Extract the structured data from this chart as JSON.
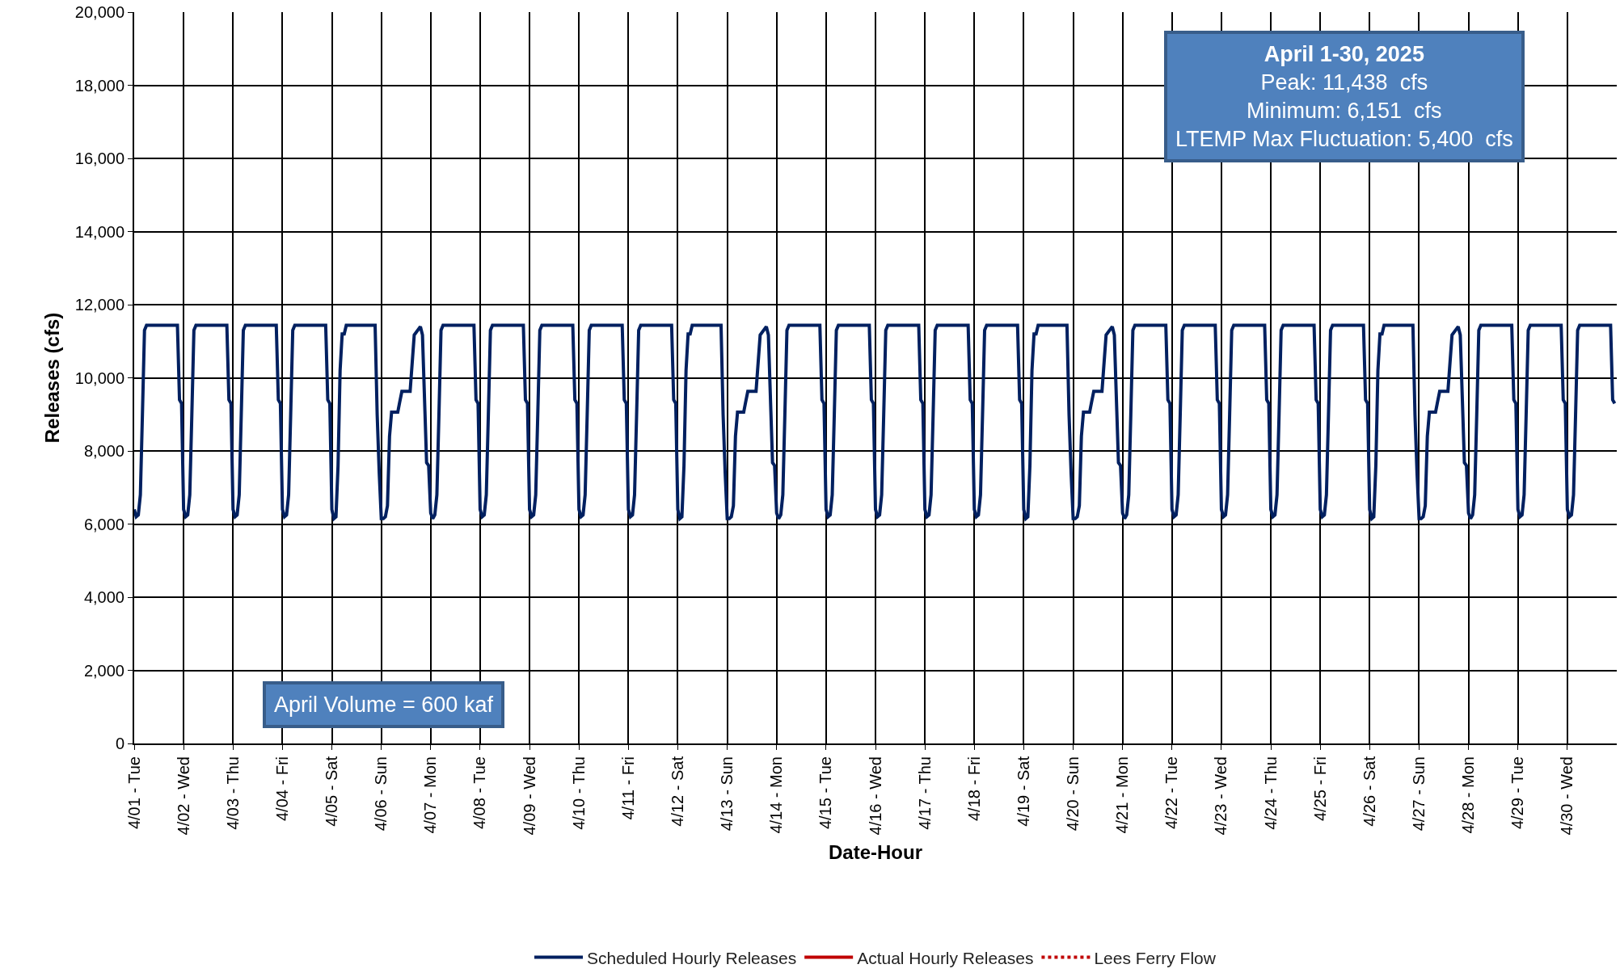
{
  "chart_data": {
    "type": "line",
    "xlabel": "Date-Hour",
    "ylabel": "Releases (cfs)",
    "xlim": [
      "2025-04-01T00:00",
      "2025-05-01T00:00"
    ],
    "xticks": [
      {
        "value": "2025-04-01",
        "label": "4/01 - Tue"
      },
      {
        "value": "2025-04-02",
        "label": "4/02 - Wed"
      },
      {
        "value": "2025-04-03",
        "label": "4/03 - Thu"
      },
      {
        "value": "2025-04-04",
        "label": "4/04 - Fri"
      },
      {
        "value": "2025-04-05",
        "label": "4/05 - Sat"
      },
      {
        "value": "2025-04-06",
        "label": "4/06 - Sun"
      },
      {
        "value": "2025-04-07",
        "label": "4/07 - Mon"
      },
      {
        "value": "2025-04-08",
        "label": "4/08 - Tue"
      },
      {
        "value": "2025-04-09",
        "label": "4/09 - Wed"
      },
      {
        "value": "2025-04-10",
        "label": "4/10 - Thu"
      },
      {
        "value": "2025-04-11",
        "label": "4/11 - Fri"
      },
      {
        "value": "2025-04-12",
        "label": "4/12 - Sat"
      },
      {
        "value": "2025-04-13",
        "label": "4/13 - Sun"
      },
      {
        "value": "2025-04-14",
        "label": "4/14 - Mon"
      },
      {
        "value": "2025-04-15",
        "label": "4/15 - Tue"
      },
      {
        "value": "2025-04-16",
        "label": "4/16 - Wed"
      },
      {
        "value": "2025-04-17",
        "label": "4/17 - Thu"
      },
      {
        "value": "2025-04-18",
        "label": "4/18 - Fri"
      },
      {
        "value": "2025-04-19",
        "label": "4/19 - Sat"
      },
      {
        "value": "2025-04-20",
        "label": "4/20 - Sun"
      },
      {
        "value": "2025-04-21",
        "label": "4/21 - Mon"
      },
      {
        "value": "2025-04-22",
        "label": "4/22 - Tue"
      },
      {
        "value": "2025-04-23",
        "label": "4/23 - Wed"
      },
      {
        "value": "2025-04-24",
        "label": "4/24 - Thu"
      },
      {
        "value": "2025-04-25",
        "label": "4/25 - Fri"
      },
      {
        "value": "2025-04-26",
        "label": "4/26 - Sat"
      },
      {
        "value": "2025-04-27",
        "label": "4/27 - Sun"
      },
      {
        "value": "2025-04-28",
        "label": "4/28 - Mon"
      },
      {
        "value": "2025-04-29",
        "label": "4/29 - Tue"
      },
      {
        "value": "2025-04-30",
        "label": "4/30 - Wed"
      }
    ],
    "ylim": [
      0,
      20000
    ],
    "yticks": [
      {
        "value": 0,
        "label": "0"
      },
      {
        "value": 2000,
        "label": "2,000"
      },
      {
        "value": 4000,
        "label": "4,000"
      },
      {
        "value": 6000,
        "label": "6,000"
      },
      {
        "value": 8000,
        "label": "8,000"
      },
      {
        "value": 10000,
        "label": "10,000"
      },
      {
        "value": 12000,
        "label": "12,000"
      },
      {
        "value": 14000,
        "label": "14,000"
      },
      {
        "value": 16000,
        "label": "16,000"
      },
      {
        "value": 18000,
        "label": "18,000"
      },
      {
        "value": 20000,
        "label": "20,000"
      }
    ],
    "grid": true,
    "legend": "bottom",
    "series": [
      {
        "name": "Scheduled Hourly Releases",
        "color": "#002060",
        "line_style": "solid",
        "x": [
          "2025-04-01T00:00",
          "2025-04-01T01:00",
          "2025-04-01T02:00",
          "2025-04-01T03:00",
          "2025-04-01T04:00",
          "2025-04-01T05:00",
          "2025-04-01T06:00",
          "2025-04-01T21:00",
          "2025-04-01T22:00",
          "2025-04-01T23:00",
          "2025-04-02T00:00",
          "2025-04-02T01:00",
          "2025-04-02T02:00",
          "2025-04-02T03:00",
          "2025-04-02T04:00",
          "2025-04-02T05:00",
          "2025-04-02T06:00",
          "2025-04-02T21:00",
          "2025-04-02T22:00",
          "2025-04-02T23:00",
          "2025-04-03T00:00",
          "2025-04-03T01:00",
          "2025-04-03T02:00",
          "2025-04-03T03:00",
          "2025-04-03T04:00",
          "2025-04-03T05:00",
          "2025-04-03T06:00",
          "2025-04-03T21:00",
          "2025-04-03T22:00",
          "2025-04-03T23:00",
          "2025-04-04T00:00",
          "2025-04-04T01:00",
          "2025-04-04T02:00",
          "2025-04-04T03:00",
          "2025-04-04T04:00",
          "2025-04-04T05:00",
          "2025-04-04T06:00",
          "2025-04-04T21:00",
          "2025-04-04T22:00",
          "2025-04-04T23:00",
          "2025-04-05T00:00",
          "2025-04-05T01:00",
          "2025-04-05T02:00",
          "2025-04-05T03:00",
          "2025-04-05T04:00",
          "2025-04-05T05:00",
          "2025-04-05T06:00",
          "2025-04-05T07:00",
          "2025-04-05T21:00",
          "2025-04-05T22:00",
          "2025-04-05T23:00",
          "2025-04-06T00:00",
          "2025-04-06T01:00",
          "2025-04-06T02:00",
          "2025-04-06T03:00",
          "2025-04-06T04:00",
          "2025-04-06T05:00",
          "2025-04-06T08:00",
          "2025-04-06T09:00",
          "2025-04-06T10:00",
          "2025-04-06T14:00",
          "2025-04-06T16:00",
          "2025-04-06T19:00",
          "2025-04-06T20:00",
          "2025-04-06T22:00",
          "2025-04-06T23:00",
          "2025-04-07T00:00",
          "2025-04-07T01:00",
          "2025-04-07T02:00",
          "2025-04-07T03:00",
          "2025-04-07T04:00",
          "2025-04-07T05:00",
          "2025-04-07T06:00",
          "2025-04-07T21:00",
          "2025-04-07T22:00",
          "2025-04-07T23:00",
          "2025-04-08T00:00",
          "2025-04-08T01:00",
          "2025-04-08T02:00",
          "2025-04-08T03:00",
          "2025-04-08T04:00",
          "2025-04-08T05:00",
          "2025-04-08T06:00",
          "2025-04-08T21:00",
          "2025-04-08T22:00",
          "2025-04-08T23:00",
          "2025-04-09T00:00",
          "2025-04-09T01:00",
          "2025-04-09T02:00",
          "2025-04-09T03:00",
          "2025-04-09T04:00",
          "2025-04-09T05:00",
          "2025-04-09T06:00",
          "2025-04-09T21:00",
          "2025-04-09T22:00",
          "2025-04-09T23:00",
          "2025-04-10T00:00",
          "2025-04-10T01:00",
          "2025-04-10T02:00",
          "2025-04-10T03:00",
          "2025-04-10T04:00",
          "2025-04-10T05:00",
          "2025-04-10T06:00",
          "2025-04-10T21:00",
          "2025-04-10T22:00",
          "2025-04-10T23:00",
          "2025-04-11T00:00",
          "2025-04-11T01:00",
          "2025-04-11T02:00",
          "2025-04-11T03:00",
          "2025-04-11T04:00",
          "2025-04-11T05:00",
          "2025-04-11T06:00",
          "2025-04-11T21:00",
          "2025-04-11T22:00",
          "2025-04-11T23:00",
          "2025-04-12T00:00",
          "2025-04-12T01:00",
          "2025-04-12T02:00",
          "2025-04-12T03:00",
          "2025-04-12T04:00",
          "2025-04-12T05:00",
          "2025-04-12T06:00",
          "2025-04-12T07:00",
          "2025-04-12T21:00",
          "2025-04-12T22:00",
          "2025-04-12T23:00",
          "2025-04-13T00:00",
          "2025-04-13T01:00",
          "2025-04-13T02:00",
          "2025-04-13T03:00",
          "2025-04-13T04:00",
          "2025-04-13T05:00",
          "2025-04-13T08:00",
          "2025-04-13T09:00",
          "2025-04-13T10:00",
          "2025-04-13T14:00",
          "2025-04-13T16:00",
          "2025-04-13T19:00",
          "2025-04-13T20:00",
          "2025-04-13T22:00",
          "2025-04-13T23:00",
          "2025-04-14T00:00",
          "2025-04-14T01:00",
          "2025-04-14T02:00",
          "2025-04-14T03:00",
          "2025-04-14T04:00",
          "2025-04-14T05:00",
          "2025-04-14T06:00",
          "2025-04-14T21:00",
          "2025-04-14T22:00",
          "2025-04-14T23:00",
          "2025-04-15T00:00",
          "2025-04-15T01:00",
          "2025-04-15T02:00",
          "2025-04-15T03:00",
          "2025-04-15T04:00",
          "2025-04-15T05:00",
          "2025-04-15T06:00",
          "2025-04-15T21:00",
          "2025-04-15T22:00",
          "2025-04-15T23:00",
          "2025-04-16T00:00",
          "2025-04-16T01:00",
          "2025-04-16T02:00",
          "2025-04-16T03:00",
          "2025-04-16T04:00",
          "2025-04-16T05:00",
          "2025-04-16T06:00",
          "2025-04-16T21:00",
          "2025-04-16T22:00",
          "2025-04-16T23:00",
          "2025-04-17T00:00",
          "2025-04-17T01:00",
          "2025-04-17T02:00",
          "2025-04-17T03:00",
          "2025-04-17T04:00",
          "2025-04-17T05:00",
          "2025-04-17T06:00",
          "2025-04-17T21:00",
          "2025-04-17T22:00",
          "2025-04-17T23:00",
          "2025-04-18T00:00",
          "2025-04-18T01:00",
          "2025-04-18T02:00",
          "2025-04-18T03:00",
          "2025-04-18T04:00",
          "2025-04-18T05:00",
          "2025-04-18T06:00",
          "2025-04-18T21:00",
          "2025-04-18T22:00",
          "2025-04-18T23:00",
          "2025-04-19T00:00",
          "2025-04-19T01:00",
          "2025-04-19T02:00",
          "2025-04-19T03:00",
          "2025-04-19T04:00",
          "2025-04-19T05:00",
          "2025-04-19T06:00",
          "2025-04-19T07:00",
          "2025-04-19T21:00",
          "2025-04-19T22:00",
          "2025-04-19T23:00",
          "2025-04-20T00:00",
          "2025-04-20T01:00",
          "2025-04-20T02:00",
          "2025-04-20T03:00",
          "2025-04-20T04:00",
          "2025-04-20T05:00",
          "2025-04-20T08:00",
          "2025-04-20T09:00",
          "2025-04-20T10:00",
          "2025-04-20T14:00",
          "2025-04-20T16:00",
          "2025-04-20T19:00",
          "2025-04-20T20:00",
          "2025-04-20T22:00",
          "2025-04-20T23:00",
          "2025-04-21T00:00",
          "2025-04-21T01:00",
          "2025-04-21T02:00",
          "2025-04-21T03:00",
          "2025-04-21T04:00",
          "2025-04-21T05:00",
          "2025-04-21T06:00",
          "2025-04-21T21:00",
          "2025-04-21T22:00",
          "2025-04-21T23:00",
          "2025-04-22T00:00",
          "2025-04-22T01:00",
          "2025-04-22T02:00",
          "2025-04-22T03:00",
          "2025-04-22T04:00",
          "2025-04-22T05:00",
          "2025-04-22T06:00",
          "2025-04-22T21:00",
          "2025-04-22T22:00",
          "2025-04-22T23:00",
          "2025-04-23T00:00",
          "2025-04-23T01:00",
          "2025-04-23T02:00",
          "2025-04-23T03:00",
          "2025-04-23T04:00",
          "2025-04-23T05:00",
          "2025-04-23T06:00",
          "2025-04-23T21:00",
          "2025-04-23T22:00",
          "2025-04-23T23:00",
          "2025-04-24T00:00",
          "2025-04-24T01:00",
          "2025-04-24T02:00",
          "2025-04-24T03:00",
          "2025-04-24T04:00",
          "2025-04-24T05:00",
          "2025-04-24T06:00",
          "2025-04-24T21:00",
          "2025-04-24T22:00",
          "2025-04-24T23:00",
          "2025-04-25T00:00",
          "2025-04-25T01:00",
          "2025-04-25T02:00",
          "2025-04-25T03:00",
          "2025-04-25T04:00",
          "2025-04-25T05:00",
          "2025-04-25T06:00",
          "2025-04-25T21:00",
          "2025-04-25T22:00",
          "2025-04-25T23:00",
          "2025-04-26T00:00",
          "2025-04-26T01:00",
          "2025-04-26T02:00",
          "2025-04-26T03:00",
          "2025-04-26T04:00",
          "2025-04-26T05:00",
          "2025-04-26T06:00",
          "2025-04-26T07:00",
          "2025-04-26T21:00",
          "2025-04-26T22:00",
          "2025-04-26T23:00",
          "2025-04-27T00:00",
          "2025-04-27T01:00",
          "2025-04-27T02:00",
          "2025-04-27T03:00",
          "2025-04-27T04:00",
          "2025-04-27T05:00",
          "2025-04-27T08:00",
          "2025-04-27T09:00",
          "2025-04-27T10:00",
          "2025-04-27T14:00",
          "2025-04-27T16:00",
          "2025-04-27T19:00",
          "2025-04-27T20:00",
          "2025-04-27T22:00",
          "2025-04-27T23:00",
          "2025-04-28T00:00",
          "2025-04-28T01:00",
          "2025-04-28T02:00",
          "2025-04-28T03:00",
          "2025-04-28T04:00",
          "2025-04-28T05:00",
          "2025-04-28T06:00",
          "2025-04-28T21:00",
          "2025-04-28T22:00",
          "2025-04-28T23:00",
          "2025-04-29T00:00",
          "2025-04-29T01:00",
          "2025-04-29T02:00",
          "2025-04-29T03:00",
          "2025-04-29T04:00",
          "2025-04-29T05:00",
          "2025-04-29T06:00",
          "2025-04-29T21:00",
          "2025-04-29T22:00",
          "2025-04-29T23:00",
          "2025-04-30T00:00",
          "2025-04-30T01:00",
          "2025-04-30T02:00",
          "2025-04-30T03:00",
          "2025-04-30T04:00",
          "2025-04-30T05:00",
          "2025-04-30T06:00",
          "2025-04-30T21:00",
          "2025-04-30T22:00",
          "2025-04-30T23:00"
        ],
        "values": [
          6400,
          6200,
          6250,
          6800,
          9000,
          11300,
          11438,
          11438,
          9400,
          9300,
          6400,
          6200,
          6250,
          6800,
          9000,
          11300,
          11438,
          11438,
          9400,
          9300,
          6400,
          6200,
          6250,
          6800,
          9000,
          11300,
          11438,
          11438,
          9400,
          9300,
          6400,
          6200,
          6250,
          6800,
          9000,
          11300,
          11438,
          11438,
          9400,
          9300,
          6400,
          6151,
          6200,
          7600,
          10200,
          11200,
          11200,
          11438,
          11438,
          9000,
          7400,
          6151,
          6151,
          6200,
          6500,
          8400,
          9060,
          9060,
          9350,
          9630,
          9630,
          11170,
          11400,
          11170,
          7680,
          7600,
          6300,
          6151,
          6250,
          6800,
          9000,
          11300,
          11438,
          11438,
          9400,
          9300,
          6400,
          6200,
          6250,
          6800,
          9000,
          11300,
          11438,
          11438,
          9400,
          9300,
          6400,
          6200,
          6250,
          6800,
          9000,
          11300,
          11438,
          11438,
          9400,
          9300,
          6400,
          6200,
          6250,
          6800,
          9000,
          11300,
          11438,
          11438,
          9400,
          9300,
          6400,
          6200,
          6250,
          6800,
          9000,
          11300,
          11438,
          11438,
          9400,
          9300,
          6400,
          6151,
          6200,
          7600,
          10200,
          11200,
          11200,
          11438,
          11438,
          9000,
          7400,
          6151,
          6151,
          6200,
          6500,
          8400,
          9060,
          9060,
          9350,
          9630,
          9630,
          11170,
          11400,
          11170,
          7680,
          7600,
          6300,
          6151,
          6250,
          6800,
          9000,
          11300,
          11438,
          11438,
          9400,
          9300,
          6400,
          6200,
          6250,
          6800,
          9000,
          11300,
          11438,
          11438,
          9400,
          9300,
          6400,
          6200,
          6250,
          6800,
          9000,
          11300,
          11438,
          11438,
          9400,
          9300,
          6400,
          6200,
          6250,
          6800,
          9000,
          11300,
          11438,
          11438,
          9400,
          9300,
          6400,
          6200,
          6250,
          6800,
          9000,
          11300,
          11438,
          11438,
          9400,
          9300,
          6400,
          6151,
          6200,
          7600,
          10200,
          11200,
          11200,
          11438,
          11438,
          9000,
          7400,
          6151,
          6151,
          6200,
          6500,
          8400,
          9060,
          9060,
          9350,
          9630,
          9630,
          11170,
          11400,
          11170,
          7680,
          7600,
          6300,
          6151,
          6250,
          6800,
          9000,
          11300,
          11438,
          11438,
          9400,
          9300,
          6400,
          6200,
          6250,
          6800,
          9000,
          11300,
          11438,
          11438,
          9400,
          9300,
          6400,
          6200,
          6250,
          6800,
          9000,
          11300,
          11438,
          11438,
          9400,
          9300,
          6400,
          6200,
          6250,
          6800,
          9000,
          11300,
          11438,
          11438,
          9400,
          9300,
          6400,
          6200,
          6250,
          6800,
          9000,
          11300,
          11438,
          11438,
          9400,
          9300,
          6400,
          6151,
          6200,
          7600,
          10200,
          11200,
          11200,
          11438,
          11438,
          9000,
          7400,
          6151,
          6151,
          6200,
          6500,
          8400,
          9060,
          9060,
          9350,
          9630,
          9630,
          11170,
          11400,
          11170,
          7680,
          7600,
          6300,
          6151,
          6250,
          6800,
          9000,
          11300,
          11438,
          11438,
          9400,
          9300,
          6400,
          6200,
          6250,
          6800,
          9000,
          11300,
          11438,
          11438,
          9400,
          9300,
          6400,
          6200,
          6250,
          6800,
          9000,
          11300,
          11438,
          11438,
          9400,
          9300
        ]
      },
      {
        "name": "Actual Hourly Releases",
        "color": "#c00000",
        "line_style": "solid"
      },
      {
        "name": "Lees Ferry Flow",
        "color": "#c00000",
        "line_style": "dotted"
      }
    ],
    "annotations": [
      "April 1-30, 2025\nPeak: 11,438  cfs\nMinimum: 6,151  cfs\nLTEMP Max Fluctuation: 5,400  cfs",
      "April Volume = 600 kaf"
    ]
  }
}
